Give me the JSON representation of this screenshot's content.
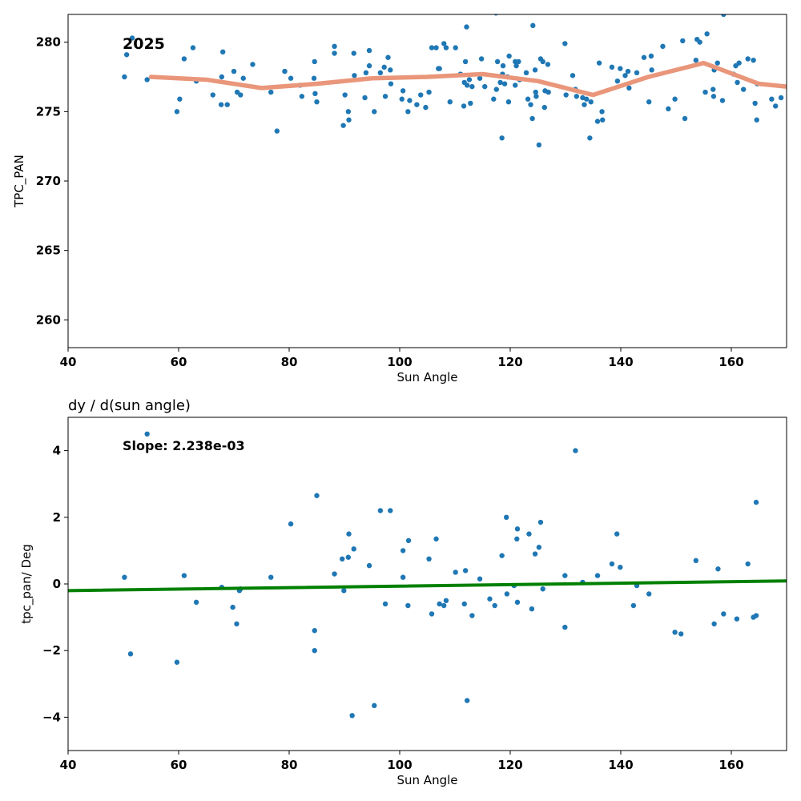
{
  "chart_data": [
    {
      "type": "scatter",
      "title": "",
      "annotation": "2025",
      "xlabel": "Sun Angle",
      "ylabel": "TPC_PAN",
      "xlim": [
        40,
        170
      ],
      "ylim": [
        258,
        282
      ],
      "xticks": [
        40,
        60,
        80,
        100,
        120,
        140,
        160
      ],
      "yticks": [
        260,
        265,
        270,
        275,
        280
      ],
      "grid": false,
      "colors": {
        "points": "#1f77b4",
        "trend": "#e9967a"
      },
      "points": [
        [
          50.2,
          277.5
        ],
        [
          50.6,
          279.1
        ],
        [
          51.6,
          280.3
        ],
        [
          54.3,
          277.3
        ],
        [
          59.7,
          275.0
        ],
        [
          60.2,
          275.9
        ],
        [
          61.0,
          278.8
        ],
        [
          62.6,
          279.6
        ],
        [
          63.2,
          277.2
        ],
        [
          66.2,
          276.2
        ],
        [
          67.7,
          275.5
        ],
        [
          67.8,
          277.5
        ],
        [
          68.0,
          279.3
        ],
        [
          68.8,
          275.5
        ],
        [
          70.0,
          277.9
        ],
        [
          70.6,
          276.4
        ],
        [
          71.2,
          276.2
        ],
        [
          71.7,
          277.4
        ],
        [
          73.4,
          278.4
        ],
        [
          76.7,
          276.4
        ],
        [
          77.8,
          273.6
        ],
        [
          79.2,
          277.9
        ],
        [
          80.3,
          277.4
        ],
        [
          82.0,
          276.9
        ],
        [
          82.3,
          276.1
        ],
        [
          84.5,
          277.4
        ],
        [
          84.6,
          278.6
        ],
        [
          84.7,
          276.3
        ],
        [
          85.0,
          275.7
        ],
        [
          88.2,
          279.7
        ],
        [
          88.2,
          279.2
        ],
        [
          89.8,
          274.0
        ],
        [
          90.1,
          276.2
        ],
        [
          90.7,
          275.0
        ],
        [
          90.8,
          274.4
        ],
        [
          91.7,
          279.2
        ],
        [
          91.8,
          277.6
        ],
        [
          93.7,
          276.0
        ],
        [
          93.9,
          277.8
        ],
        [
          94.5,
          279.4
        ],
        [
          94.5,
          278.3
        ],
        [
          95.4,
          275.0
        ],
        [
          96.5,
          277.8
        ],
        [
          97.2,
          278.2
        ],
        [
          97.4,
          276.1
        ],
        [
          97.9,
          278.9
        ],
        [
          98.3,
          278.0
        ],
        [
          98.4,
          277.0
        ],
        [
          100.4,
          275.9
        ],
        [
          100.6,
          276.5
        ],
        [
          101.5,
          275.0
        ],
        [
          101.8,
          275.8
        ],
        [
          103.1,
          275.5
        ],
        [
          103.8,
          276.2
        ],
        [
          104.7,
          275.3
        ],
        [
          105.3,
          276.4
        ],
        [
          105.8,
          279.6
        ],
        [
          106.6,
          279.6
        ],
        [
          107.0,
          278.1
        ],
        [
          107.2,
          278.1
        ],
        [
          108.0,
          279.9
        ],
        [
          108.4,
          279.6
        ],
        [
          109.1,
          275.7
        ],
        [
          110.1,
          279.6
        ],
        [
          111.0,
          277.7
        ],
        [
          111.6,
          275.4
        ],
        [
          111.7,
          277.1
        ],
        [
          111.9,
          278.6
        ],
        [
          112.1,
          281.1
        ],
        [
          112.2,
          276.9
        ],
        [
          112.6,
          277.3
        ],
        [
          112.8,
          275.6
        ],
        [
          113.1,
          276.8
        ],
        [
          114.5,
          277.4
        ],
        [
          114.8,
          278.8
        ],
        [
          115.4,
          276.8
        ],
        [
          117.0,
          275.9
        ],
        [
          117.4,
          282.1
        ],
        [
          117.5,
          276.6
        ],
        [
          117.7,
          278.6
        ],
        [
          118.2,
          277.1
        ],
        [
          118.5,
          273.1
        ],
        [
          118.6,
          277.7
        ],
        [
          118.7,
          278.3
        ],
        [
          119.0,
          277.0
        ],
        [
          119.5,
          277.5
        ],
        [
          119.7,
          275.7
        ],
        [
          119.8,
          279.0
        ],
        [
          120.9,
          278.6
        ],
        [
          120.9,
          276.9
        ],
        [
          121.1,
          278.3
        ],
        [
          121.5,
          278.6
        ],
        [
          121.7,
          277.3
        ],
        [
          122.9,
          277.8
        ],
        [
          123.2,
          275.9
        ],
        [
          123.7,
          275.5
        ],
        [
          124.0,
          274.5
        ],
        [
          124.1,
          281.2
        ],
        [
          124.5,
          278.0
        ],
        [
          124.6,
          276.4
        ],
        [
          124.7,
          276.1
        ],
        [
          125.2,
          272.6
        ],
        [
          125.5,
          278.8
        ],
        [
          125.9,
          278.6
        ],
        [
          126.2,
          275.3
        ],
        [
          126.3,
          276.5
        ],
        [
          126.8,
          278.4
        ],
        [
          126.9,
          276.4
        ],
        [
          129.9,
          279.9
        ],
        [
          130.1,
          276.2
        ],
        [
          131.3,
          277.6
        ],
        [
          131.8,
          276.6
        ],
        [
          132.0,
          276.1
        ],
        [
          133.1,
          276.0
        ],
        [
          133.4,
          275.5
        ],
        [
          133.8,
          275.9
        ],
        [
          134.4,
          273.1
        ],
        [
          134.6,
          275.7
        ],
        [
          135.8,
          274.3
        ],
        [
          136.1,
          278.5
        ],
        [
          136.6,
          275.0
        ],
        [
          136.7,
          274.4
        ],
        [
          138.4,
          278.2
        ],
        [
          139.4,
          277.2
        ],
        [
          139.9,
          278.1
        ],
        [
          140.8,
          277.6
        ],
        [
          141.3,
          277.9
        ],
        [
          141.5,
          276.7
        ],
        [
          142.9,
          277.8
        ],
        [
          144.2,
          278.9
        ],
        [
          145.1,
          275.7
        ],
        [
          145.5,
          279.0
        ],
        [
          145.6,
          278.0
        ],
        [
          147.6,
          279.7
        ],
        [
          148.6,
          275.2
        ],
        [
          149.8,
          275.9
        ],
        [
          151.2,
          280.1
        ],
        [
          151.6,
          274.5
        ],
        [
          153.6,
          278.7
        ],
        [
          153.8,
          280.2
        ],
        [
          154.3,
          280.0
        ],
        [
          155.3,
          276.4
        ],
        [
          155.6,
          280.6
        ],
        [
          156.7,
          276.6
        ],
        [
          156.8,
          276.1
        ],
        [
          156.9,
          278.0
        ],
        [
          157.5,
          278.5
        ],
        [
          158.4,
          275.8
        ],
        [
          158.6,
          282.0
        ],
        [
          160.4,
          277.7
        ],
        [
          160.8,
          278.3
        ],
        [
          161.1,
          277.1
        ],
        [
          161.4,
          278.5
        ],
        [
          162.2,
          276.6
        ],
        [
          163.0,
          278.8
        ],
        [
          164.0,
          278.7
        ],
        [
          164.3,
          275.6
        ],
        [
          164.6,
          274.4
        ],
        [
          164.7,
          277.0
        ],
        [
          167.3,
          275.9
        ],
        [
          168.0,
          275.4
        ],
        [
          169.0,
          276.0
        ]
      ],
      "trend": {
        "x": [
          55,
          65,
          75,
          85,
          95,
          105,
          115,
          125,
          135,
          145,
          155,
          165,
          170
        ],
        "y": [
          277.5,
          277.3,
          276.7,
          277.0,
          277.4,
          277.5,
          277.7,
          277.2,
          276.2,
          277.5,
          278.5,
          277.0,
          276.8
        ]
      }
    },
    {
      "type": "scatter",
      "title": "dy / d(sun angle)",
      "annotation": "Slope: 2.238e-03",
      "xlabel": "Sun Angle",
      "ylabel": "tpc_pan/ Deg",
      "xlim": [
        40,
        170
      ],
      "ylim": [
        -5,
        5
      ],
      "xticks": [
        40,
        60,
        80,
        100,
        120,
        140,
        160
      ],
      "yticks": [
        -4,
        -2,
        0,
        2,
        4
      ],
      "grid": false,
      "colors": {
        "points": "#1f77b4",
        "trend": "#008000"
      },
      "points": [
        [
          50.2,
          0.2
        ],
        [
          51.3,
          -2.1
        ],
        [
          54.3,
          4.5
        ],
        [
          59.7,
          -2.35
        ],
        [
          61.0,
          0.25
        ],
        [
          63.2,
          -0.55
        ],
        [
          67.8,
          -0.1
        ],
        [
          69.8,
          -0.7
        ],
        [
          70.5,
          -1.2
        ],
        [
          71.0,
          -0.2
        ],
        [
          71.2,
          -0.15
        ],
        [
          76.7,
          0.2
        ],
        [
          80.3,
          1.8
        ],
        [
          84.6,
          -1.4
        ],
        [
          84.6,
          -2.0
        ],
        [
          85.0,
          2.65
        ],
        [
          88.2,
          0.3
        ],
        [
          89.6,
          0.75
        ],
        [
          89.9,
          -0.2
        ],
        [
          90.7,
          0.8
        ],
        [
          90.8,
          1.5
        ],
        [
          91.4,
          -3.95
        ],
        [
          91.7,
          1.05
        ],
        [
          94.5,
          0.55
        ],
        [
          95.4,
          -3.65
        ],
        [
          96.5,
          2.2
        ],
        [
          97.4,
          -0.6
        ],
        [
          98.3,
          2.2
        ],
        [
          100.6,
          1.0
        ],
        [
          100.6,
          0.2
        ],
        [
          101.5,
          -0.65
        ],
        [
          101.6,
          1.3
        ],
        [
          105.3,
          0.75
        ],
        [
          105.8,
          -0.9
        ],
        [
          106.6,
          1.35
        ],
        [
          107.2,
          -0.6
        ],
        [
          108.0,
          -0.65
        ],
        [
          108.4,
          -0.5
        ],
        [
          110.1,
          0.35
        ],
        [
          111.7,
          -0.6
        ],
        [
          111.9,
          0.4
        ],
        [
          112.2,
          -3.5
        ],
        [
          113.1,
          -0.95
        ],
        [
          114.5,
          0.15
        ],
        [
          116.3,
          -0.45
        ],
        [
          117.2,
          -0.65
        ],
        [
          118.5,
          0.85
        ],
        [
          119.3,
          2.0
        ],
        [
          119.4,
          -0.3
        ],
        [
          120.7,
          -0.05
        ],
        [
          121.2,
          1.35
        ],
        [
          121.3,
          1.65
        ],
        [
          121.3,
          -0.55
        ],
        [
          123.4,
          1.5
        ],
        [
          123.9,
          -0.75
        ],
        [
          124.5,
          0.9
        ],
        [
          125.2,
          1.1
        ],
        [
          125.5,
          1.85
        ],
        [
          125.9,
          -0.15
        ],
        [
          129.9,
          0.25
        ],
        [
          129.9,
          -1.3
        ],
        [
          131.8,
          4.0
        ],
        [
          133.1,
          0.05
        ],
        [
          135.8,
          0.25
        ],
        [
          138.4,
          0.6
        ],
        [
          139.3,
          1.5
        ],
        [
          139.9,
          0.5
        ],
        [
          142.3,
          -0.65
        ],
        [
          142.9,
          -0.05
        ],
        [
          145.1,
          -0.3
        ],
        [
          149.8,
          -1.45
        ],
        [
          150.9,
          -1.5
        ],
        [
          153.6,
          0.7
        ],
        [
          156.9,
          -1.2
        ],
        [
          157.6,
          0.45
        ],
        [
          158.6,
          -0.9
        ],
        [
          161.0,
          -1.05
        ],
        [
          163.0,
          0.6
        ],
        [
          164.0,
          -1.0
        ],
        [
          164.5,
          2.45
        ],
        [
          164.5,
          -0.95
        ]
      ],
      "trend": {
        "x": [
          40,
          170
        ],
        "y": [
          -0.2,
          0.09
        ]
      }
    }
  ]
}
